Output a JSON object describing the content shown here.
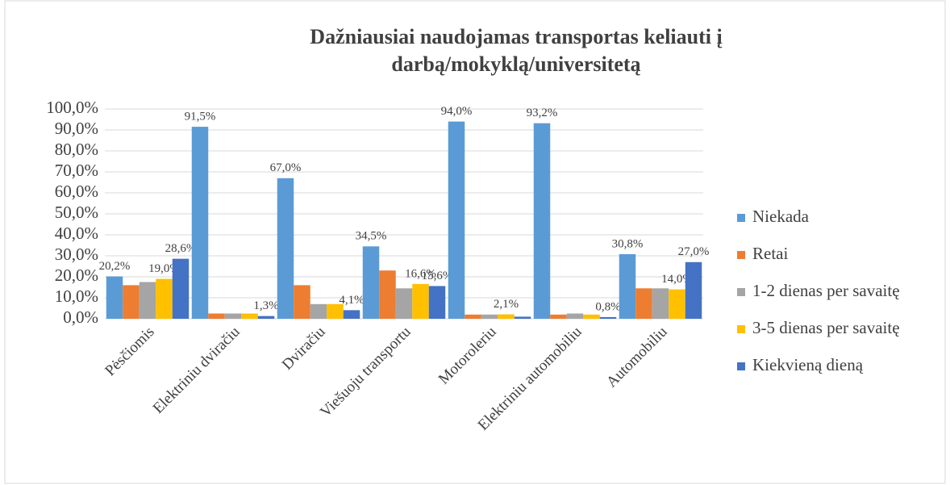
{
  "chart_data": {
    "type": "bar",
    "title": [
      "Dažniausiai naudojamas  transportas keliauti į",
      "darbą/mokyklą/universitetą"
    ],
    "categories": [
      "Pėsčiomis",
      "Elektriniu dviračiu",
      "Dviračiu",
      "Viešuoju transportu",
      "Motoroleriu",
      "Elektriniu automobiliu",
      "Automobiliu"
    ],
    "series": [
      {
        "name": "Niekada",
        "color": "#5b9bd5",
        "values": [
          20.2,
          91.5,
          67.0,
          34.5,
          94.0,
          93.2,
          30.8
        ],
        "value_labels": [
          "20,2%",
          "91,5%",
          "67,0%",
          "34,5%",
          "94,0%",
          "93,2%",
          "30,8%"
        ]
      },
      {
        "name": "Retai",
        "color": "#ed7d31",
        "values": [
          16,
          2.5,
          16,
          23,
          2,
          2,
          14.5
        ],
        "value_labels": [
          null,
          null,
          null,
          null,
          null,
          null,
          null
        ]
      },
      {
        "name": "1-2 dienas per savaitę",
        "color": "#a5a5a5",
        "values": [
          17.5,
          2.5,
          7,
          14.5,
          2,
          2.5,
          14.5
        ],
        "value_labels": [
          null,
          null,
          null,
          null,
          null,
          null,
          null
        ]
      },
      {
        "name": "3-5 dienas per savaitę",
        "color": "#ffc000",
        "values": [
          19.0,
          2.5,
          7,
          16.6,
          2.1,
          2,
          14.0
        ],
        "value_labels": [
          "19,0%",
          null,
          null,
          "16,6%",
          "2,1%",
          null,
          "14,0%"
        ]
      },
      {
        "name": "Kiekvieną dieną",
        "color": "#4472c4",
        "values": [
          28.6,
          1.3,
          4.1,
          15.6,
          1,
          0.8,
          27.0
        ],
        "value_labels": [
          "28,6%",
          "1,3%",
          "4,1%",
          "15,6%",
          null,
          "0,8%",
          "27,0%"
        ]
      }
    ],
    "ylim": [
      0,
      100
    ],
    "yticks": [
      {
        "value": 0,
        "label": "0,0%"
      },
      {
        "value": 10,
        "label": "10,0%"
      },
      {
        "value": 20,
        "label": "20,0%"
      },
      {
        "value": 30,
        "label": "30,0%"
      },
      {
        "value": 40,
        "label": "40,0%"
      },
      {
        "value": 50,
        "label": "50,0%"
      },
      {
        "value": 60,
        "label": "60,0%"
      },
      {
        "value": 70,
        "label": "70,0%"
      },
      {
        "value": 80,
        "label": "80,0%"
      },
      {
        "value": 90,
        "label": "90,0%"
      },
      {
        "value": 100,
        "label": "100,0%"
      }
    ],
    "grid": true,
    "legend": "right"
  }
}
